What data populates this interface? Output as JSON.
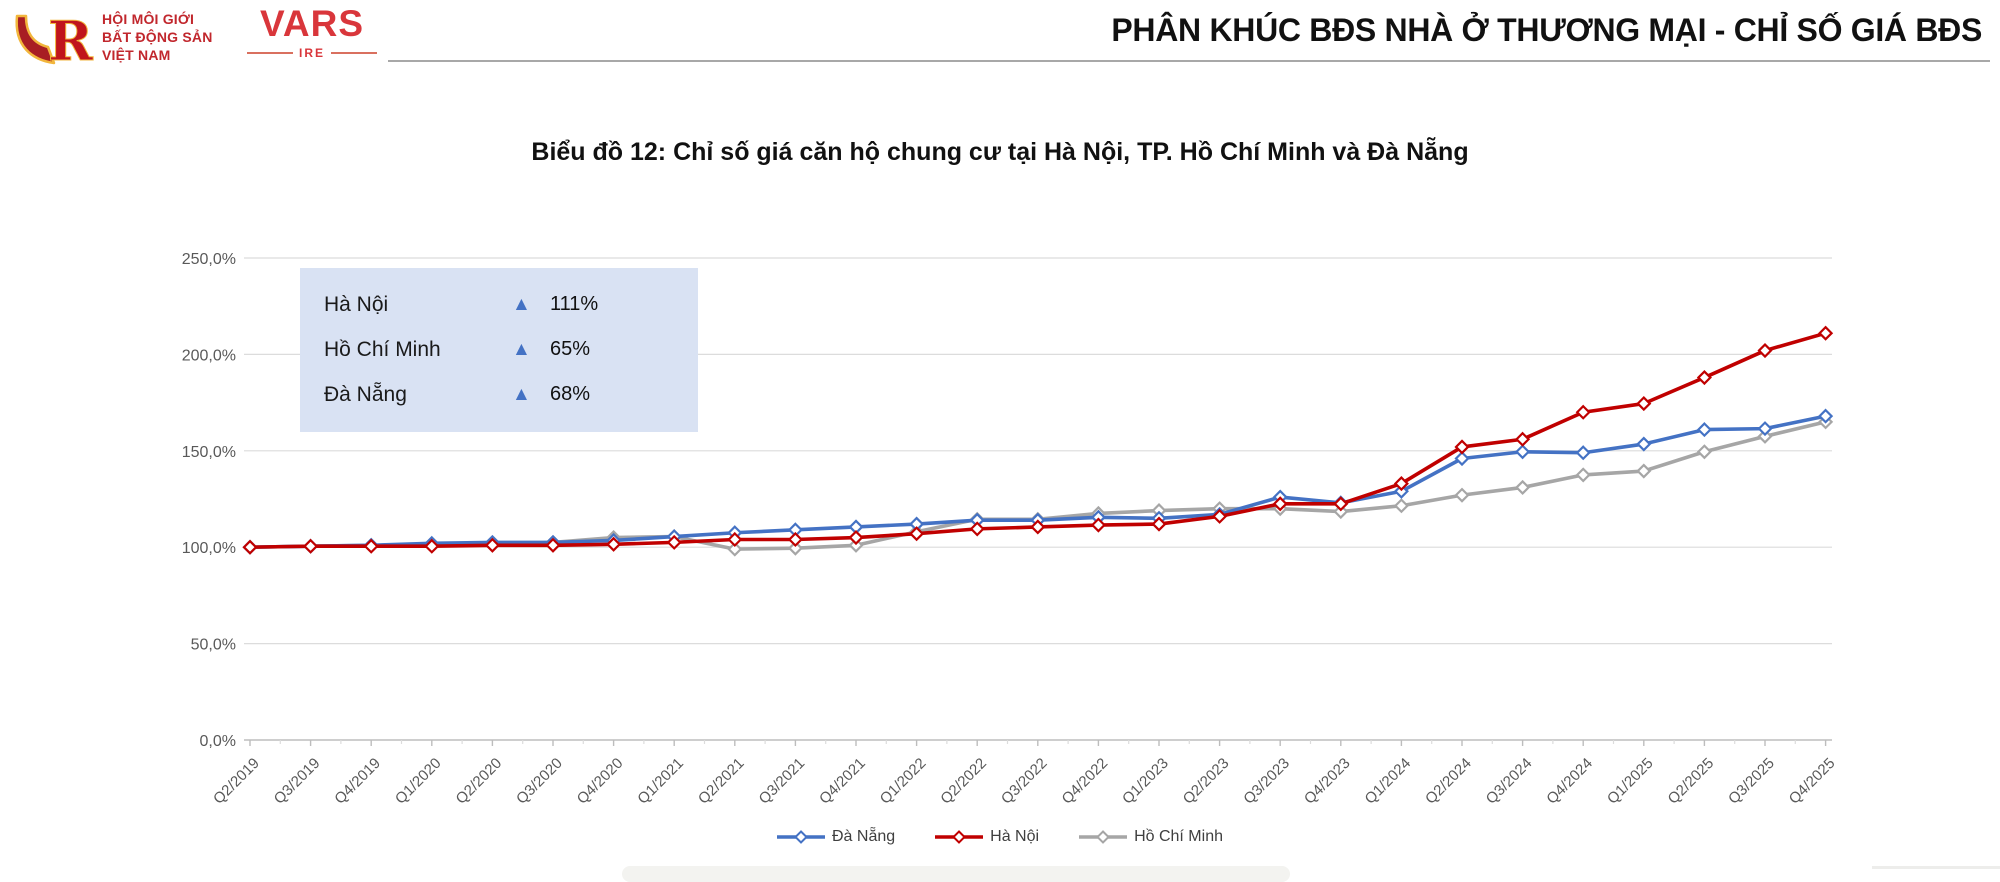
{
  "header": {
    "org_line1": "HỘI MÔI GIỚI",
    "org_line2": "BẤT ĐỘNG SẢN",
    "org_line3": "VIỆT NAM",
    "vars_logo_text": "VARS",
    "vars_logo_sub": "IRE",
    "page_title": "PHÂN KHÚC BĐS NHÀ Ở THƯƠNG MẠI - CHỈ SỐ GIÁ BĐS"
  },
  "chart_title": "Biểu đồ 12: Chỉ số giá căn hộ chung cư tại  Hà Nội, TP. Hồ Chí Minh và Đà Nẵng",
  "summary_box": {
    "background": "#D9E2F3",
    "triangle_icon": "▲",
    "triangle_color": "#4472C4",
    "rows": [
      {
        "label": "Hà Nội",
        "value": "111%"
      },
      {
        "label": "Hồ Chí Minh",
        "value": "65%"
      },
      {
        "label": "Đà Nẵng",
        "value": "68%"
      }
    ]
  },
  "chart_data": {
    "type": "line",
    "title": "Biểu đồ 12: Chỉ số giá căn hộ chung cư tại  Hà Nội, TP. Hồ Chí Minh và Đà Nẵng",
    "categories": [
      "Q2/2019",
      "Q3/2019",
      "Q4/2019",
      "Q1/2020",
      "Q2/2020",
      "Q3/2020",
      "Q4/2020",
      "Q1/2021",
      "Q2/2021",
      "Q3/2021",
      "Q4/2021",
      "Q1/2022",
      "Q2/2022",
      "Q3/2022",
      "Q4/2022",
      "Q1/2023",
      "Q2/2023",
      "Q3/2023",
      "Q4/2023",
      "Q1/2024",
      "Q2/2024",
      "Q3/2024",
      "Q4/2024",
      "Q1/2025",
      "Q2/2025",
      "Q3/2025",
      "Q4/2025"
    ],
    "series": [
      {
        "name": "Đà Nẵng",
        "color": "#4472C4",
        "values": [
          100,
          100.5,
          101,
          102,
          102.5,
          102.5,
          103.5,
          105.5,
          107.5,
          109,
          110.5,
          112,
          114,
          114,
          115.5,
          115,
          117,
          126,
          123,
          129,
          146,
          149.5,
          149,
          153.5,
          161,
          161.5,
          168
        ]
      },
      {
        "name": "Hà Nội",
        "color": "#C00000",
        "values": [
          100,
          100.5,
          100.5,
          100.5,
          101,
          101,
          101.5,
          102.5,
          104,
          104,
          105,
          107,
          109.5,
          110.5,
          111.5,
          112,
          116,
          122.5,
          122.5,
          133,
          152,
          156,
          170,
          174.5,
          188,
          202,
          211
        ]
      },
      {
        "name": "Hồ Chí Minh",
        "color": "#A6A6A6",
        "values": [
          100,
          100.5,
          101,
          101,
          101.5,
          102.5,
          105,
          105.5,
          99,
          99.5,
          101,
          108,
          114.5,
          114.5,
          117.5,
          119,
          120,
          120,
          118.5,
          121.5,
          127,
          131,
          137.5,
          139.5,
          149.5,
          157.5,
          165
        ]
      }
    ],
    "y_ticks": [
      "0,0%",
      "50,0%",
      "100,0%",
      "150,0%",
      "200,0%",
      "250,0%"
    ],
    "ylim": [
      0,
      250
    ],
    "grid": true,
    "legend_position": "bottom",
    "marker": "diamond-open"
  },
  "colors": {
    "grid": "#DCDCDC",
    "axis": "#BDBDBD",
    "axis_text": "#595959",
    "logo_red": "#C1272D",
    "vars_red": "#D9363B"
  }
}
